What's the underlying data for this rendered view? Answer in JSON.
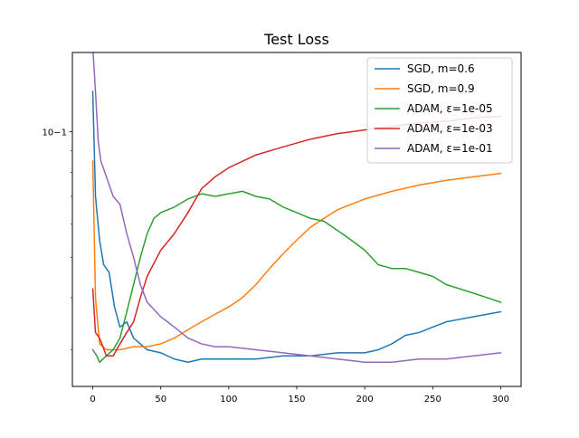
{
  "chart_data": {
    "type": "line",
    "title": "Test Loss",
    "xlabel": "",
    "ylabel": "",
    "xlim": [
      -15,
      315
    ],
    "ylim": [
      0.0245,
      0.155
    ],
    "yscale": "log",
    "x_ticks": [
      0,
      50,
      100,
      150,
      200,
      250,
      300
    ],
    "x_tick_labels": [
      "0",
      "50",
      "100",
      "150",
      "200",
      "250",
      "300"
    ],
    "y_ticks": [
      0.1
    ],
    "y_tick_labels": [
      "10−1"
    ],
    "y_minor_ticks": [
      0.03,
      0.04,
      0.05,
      0.06,
      0.07,
      0.08,
      0.09
    ],
    "grid": false,
    "legend_position": "top-right",
    "series": [
      {
        "name": "SGD, m=0.6",
        "color": "#1f77b4",
        "points": [
          [
            0,
            0.125
          ],
          [
            2,
            0.07
          ],
          [
            5,
            0.055
          ],
          [
            8,
            0.048
          ],
          [
            12,
            0.046
          ],
          [
            16,
            0.038
          ],
          [
            20,
            0.034
          ],
          [
            25,
            0.035
          ],
          [
            30,
            0.032
          ],
          [
            40,
            0.03
          ],
          [
            50,
            0.0295
          ],
          [
            60,
            0.0285
          ],
          [
            70,
            0.028
          ],
          [
            80,
            0.0285
          ],
          [
            100,
            0.0285
          ],
          [
            120,
            0.0285
          ],
          [
            140,
            0.029
          ],
          [
            160,
            0.029
          ],
          [
            180,
            0.0295
          ],
          [
            200,
            0.0295
          ],
          [
            210,
            0.03
          ],
          [
            220,
            0.031
          ],
          [
            230,
            0.0325
          ],
          [
            240,
            0.033
          ],
          [
            250,
            0.034
          ],
          [
            260,
            0.035
          ],
          [
            270,
            0.0355
          ],
          [
            280,
            0.036
          ],
          [
            290,
            0.0365
          ],
          [
            300,
            0.037
          ]
        ]
      },
      {
        "name": "SGD, m=0.9",
        "color": "#ff7f0e",
        "points": [
          [
            0,
            0.085
          ],
          [
            2,
            0.04
          ],
          [
            5,
            0.031
          ],
          [
            10,
            0.03
          ],
          [
            20,
            0.03
          ],
          [
            30,
            0.0305
          ],
          [
            40,
            0.0305
          ],
          [
            50,
            0.031
          ],
          [
            60,
            0.032
          ],
          [
            70,
            0.0335
          ],
          [
            80,
            0.035
          ],
          [
            90,
            0.0365
          ],
          [
            100,
            0.038
          ],
          [
            110,
            0.04
          ],
          [
            120,
            0.043
          ],
          [
            130,
            0.047
          ],
          [
            140,
            0.051
          ],
          [
            150,
            0.055
          ],
          [
            160,
            0.059
          ],
          [
            170,
            0.062
          ],
          [
            180,
            0.065
          ],
          [
            190,
            0.067
          ],
          [
            200,
            0.069
          ],
          [
            220,
            0.072
          ],
          [
            240,
            0.0745
          ],
          [
            260,
            0.0765
          ],
          [
            280,
            0.078
          ],
          [
            300,
            0.0795
          ]
        ]
      },
      {
        "name": "ADAM, ε=1e-05",
        "color": "#2ca02c",
        "points": [
          [
            0,
            0.03
          ],
          [
            3,
            0.029
          ],
          [
            5,
            0.028
          ],
          [
            10,
            0.029
          ],
          [
            15,
            0.03
          ],
          [
            20,
            0.032
          ],
          [
            25,
            0.037
          ],
          [
            30,
            0.043
          ],
          [
            35,
            0.05
          ],
          [
            40,
            0.057
          ],
          [
            45,
            0.062
          ],
          [
            50,
            0.064
          ],
          [
            60,
            0.066
          ],
          [
            70,
            0.069
          ],
          [
            80,
            0.071
          ],
          [
            90,
            0.07
          ],
          [
            100,
            0.071
          ],
          [
            110,
            0.072
          ],
          [
            120,
            0.07
          ],
          [
            130,
            0.069
          ],
          [
            140,
            0.066
          ],
          [
            150,
            0.064
          ],
          [
            160,
            0.062
          ],
          [
            170,
            0.061
          ],
          [
            180,
            0.058
          ],
          [
            190,
            0.055
          ],
          [
            200,
            0.052
          ],
          [
            210,
            0.048
          ],
          [
            220,
            0.047
          ],
          [
            230,
            0.047
          ],
          [
            240,
            0.046
          ],
          [
            250,
            0.045
          ],
          [
            260,
            0.043
          ],
          [
            270,
            0.042
          ],
          [
            280,
            0.041
          ],
          [
            290,
            0.04
          ],
          [
            300,
            0.039
          ]
        ]
      },
      {
        "name": "ADAM, ε=1e-03",
        "color": "#d62728",
        "points": [
          [
            0,
            0.042
          ],
          [
            2,
            0.033
          ],
          [
            5,
            0.032
          ],
          [
            10,
            0.029
          ],
          [
            15,
            0.029
          ],
          [
            20,
            0.031
          ],
          [
            25,
            0.033
          ],
          [
            30,
            0.035
          ],
          [
            35,
            0.04
          ],
          [
            40,
            0.045
          ],
          [
            50,
            0.052
          ],
          [
            60,
            0.057
          ],
          [
            70,
            0.064
          ],
          [
            80,
            0.073
          ],
          [
            90,
            0.078
          ],
          [
            100,
            0.082
          ],
          [
            120,
            0.088
          ],
          [
            140,
            0.092
          ],
          [
            160,
            0.096
          ],
          [
            180,
            0.099
          ],
          [
            200,
            0.101
          ],
          [
            220,
            0.103
          ],
          [
            240,
            0.105
          ],
          [
            260,
            0.106
          ],
          [
            280,
            0.108
          ],
          [
            300,
            0.109
          ]
        ]
      },
      {
        "name": "ADAM, ε=1e-01",
        "color": "#9467bd",
        "points": [
          [
            0,
            0.16
          ],
          [
            2,
            0.125
          ],
          [
            4,
            0.095
          ],
          [
            6,
            0.085
          ],
          [
            10,
            0.078
          ],
          [
            15,
            0.07
          ],
          [
            20,
            0.067
          ],
          [
            25,
            0.057
          ],
          [
            30,
            0.05
          ],
          [
            35,
            0.043
          ],
          [
            40,
            0.039
          ],
          [
            50,
            0.036
          ],
          [
            60,
            0.034
          ],
          [
            70,
            0.032
          ],
          [
            80,
            0.031
          ],
          [
            90,
            0.0305
          ],
          [
            100,
            0.0305
          ],
          [
            120,
            0.03
          ],
          [
            140,
            0.0295
          ],
          [
            160,
            0.029
          ],
          [
            180,
            0.0285
          ],
          [
            200,
            0.028
          ],
          [
            220,
            0.028
          ],
          [
            240,
            0.0285
          ],
          [
            260,
            0.0285
          ],
          [
            280,
            0.029
          ],
          [
            300,
            0.0295
          ]
        ]
      }
    ]
  }
}
